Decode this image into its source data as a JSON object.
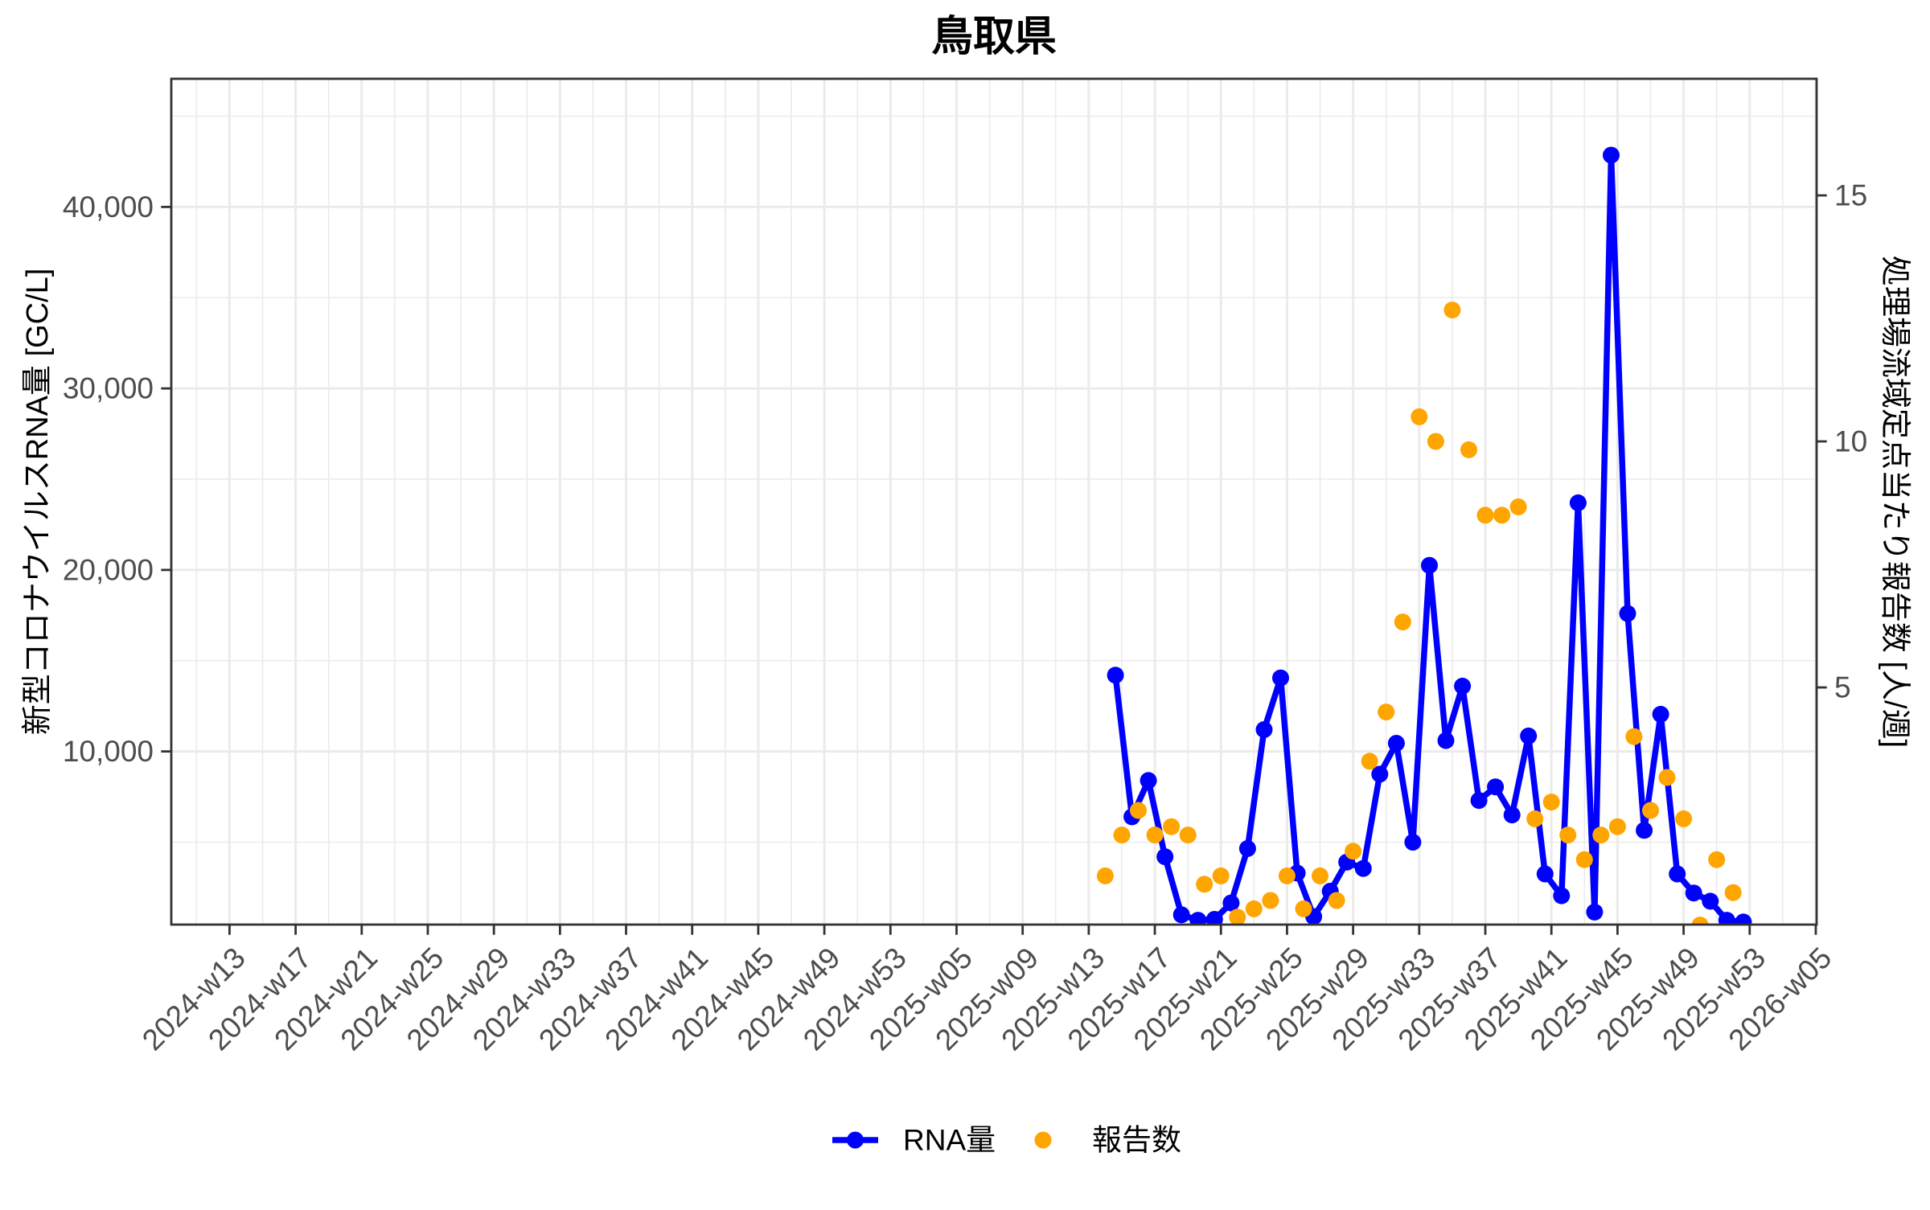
{
  "chart_data": {
    "type": "line",
    "title": "鳥取県",
    "xlabel": "",
    "ylabel": "新型コロナウイルスRNA量 [GC/L]",
    "y2label": "処理場流域定点当たり報告数 [人/週]",
    "x_ticks": [
      "2024-w13",
      "2024-w17",
      "2024-w21",
      "2024-w25",
      "2024-w29",
      "2024-w33",
      "2024-w37",
      "2024-w41",
      "2024-w45",
      "2024-w49",
      "2024-w53",
      "2025-w05",
      "2025-w09",
      "2025-w13",
      "2025-w17",
      "2025-w21",
      "2025-w25",
      "2025-w29",
      "2025-w33",
      "2025-w37",
      "2025-w41",
      "2025-w45",
      "2025-w49",
      "2025-w53",
      "2026-w05"
    ],
    "y_ticks": [
      10000,
      20000,
      30000,
      40000
    ],
    "y_tick_labels": [
      "10,000",
      "20,000",
      "30,000",
      "40,000"
    ],
    "y2_ticks": [
      5,
      10,
      15
    ],
    "y2_tick_labels": [
      "5",
      "10",
      "15"
    ],
    "ylim": [
      460,
      47060
    ],
    "y2lim": [
      0.18,
      17.37
    ],
    "xlim_approx": [
      "2024-w10",
      "2026-w05"
    ],
    "grid": true,
    "legend_position": "bottom",
    "legend": [
      {
        "label": "RNA量",
        "color": "#0000ff",
        "key": "line+point"
      },
      {
        "label": "報告数",
        "color": "#ffa500",
        "key": "point"
      }
    ],
    "categories": [
      "2025-w14",
      "2025-w15",
      "2025-w16",
      "2025-w17",
      "2025-w18",
      "2025-w19",
      "2025-w20",
      "2025-w21",
      "2025-w22",
      "2025-w23",
      "2025-w24",
      "2025-w25",
      "2025-w26",
      "2025-w27",
      "2025-w28",
      "2025-w29",
      "2025-w30",
      "2025-w31",
      "2025-w32",
      "2025-w33",
      "2025-w34",
      "2025-w35",
      "2025-w36",
      "2025-w37",
      "2025-w38",
      "2025-w39",
      "2025-w40",
      "2025-w41",
      "2025-w42",
      "2025-w43",
      "2025-w44",
      "2025-w45",
      "2025-w46",
      "2025-w47",
      "2025-w48",
      "2025-w49",
      "2025-w50",
      "2025-w51",
      "2025-w52"
    ],
    "series": [
      {
        "name": "RNA量",
        "axis": "left",
        "geom": "line+point",
        "color": "#0000ff",
        "values": [
          14200,
          6400,
          8400,
          4200,
          1000,
          700,
          750,
          1650,
          4650,
          11200,
          14050,
          3300,
          900,
          2300,
          3900,
          3550,
          8750,
          10450,
          5000,
          20250,
          10600,
          13600,
          7300,
          8050,
          6500,
          10850,
          3250,
          2050,
          23700,
          1150,
          42850,
          17600,
          5650,
          12050,
          3250,
          2200,
          1750,
          700,
          600
        ]
      },
      {
        "name": "報告数",
        "axis": "right",
        "geom": "point",
        "color": "#ffa500",
        "values": [
          1.17,
          2.0,
          2.5,
          2.0,
          2.17,
          2.0,
          1.0,
          1.17,
          0.33,
          0.5,
          0.67,
          1.17,
          0.5,
          1.17,
          0.67,
          1.67,
          3.5,
          4.5,
          6.33,
          10.5,
          10.0,
          12.67,
          9.83,
          8.5,
          8.5,
          8.67,
          2.33,
          2.67,
          2.0,
          1.5,
          2.0,
          2.17,
          4.0,
          2.5,
          3.17,
          2.33,
          0.17,
          1.5,
          0.83
        ]
      }
    ]
  }
}
